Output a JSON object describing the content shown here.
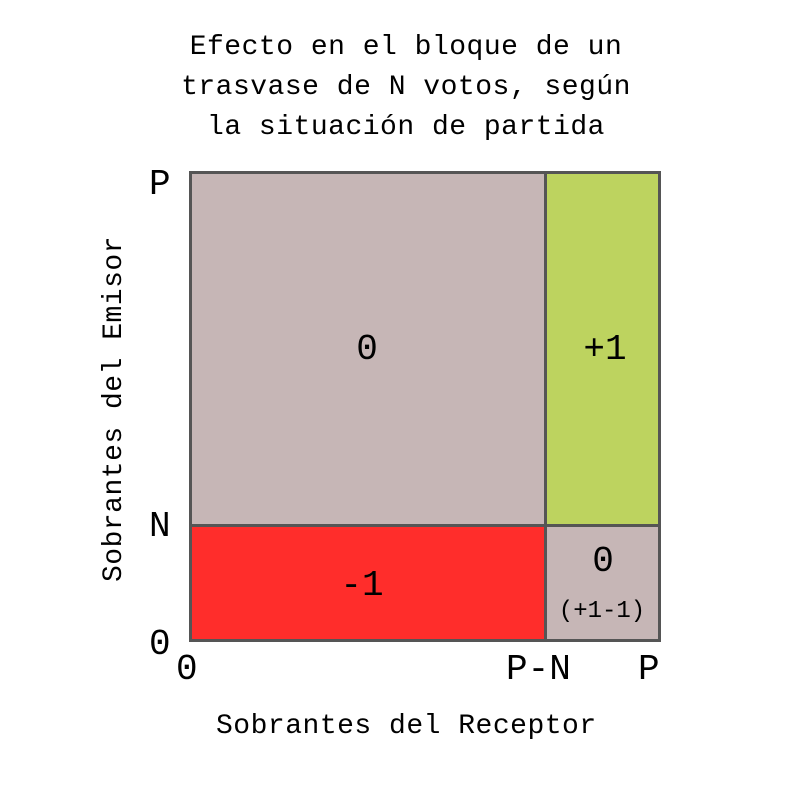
{
  "title": {
    "lines": [
      "Efecto en el bloque de un",
      "trasvase de N votos, según",
      "la situación de partida"
    ]
  },
  "axes": {
    "x_label": "Sobrantes del Receptor",
    "y_label": "Sobrantes del Emisor",
    "x_ticks": [
      "0",
      "P-N",
      "P"
    ],
    "y_ticks": [
      "P",
      "N",
      "0"
    ]
  },
  "regions": {
    "top_left": {
      "value": "0",
      "color": "#c6b6b6"
    },
    "top_right": {
      "value": "+1",
      "color": "#bdd35f"
    },
    "bottom_left": {
      "value": "-1",
      "color": "#ff2d2b"
    },
    "bottom_right": {
      "value": "0",
      "note": "(+1-1)",
      "color": "#c6b6b6"
    }
  },
  "colors": {
    "border": "#555555"
  }
}
